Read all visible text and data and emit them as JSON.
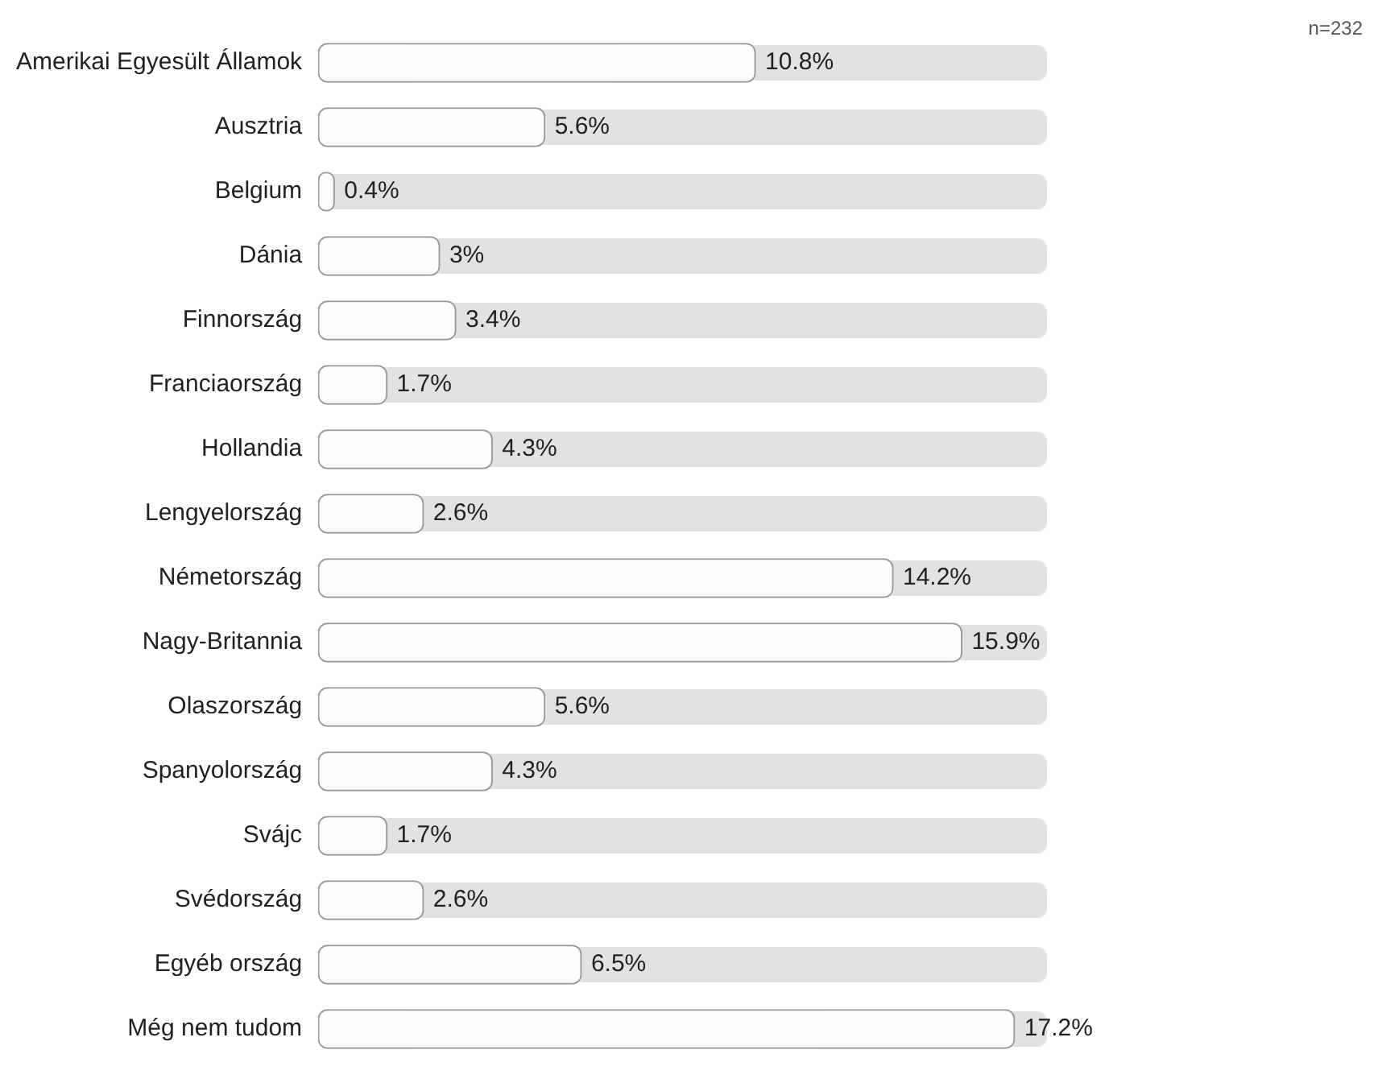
{
  "chart_data": {
    "type": "bar",
    "orientation": "horizontal",
    "categories": [
      "Amerikai Egyesült Államok",
      "Ausztria",
      "Belgium",
      "Dánia",
      "Finnország",
      "Franciaország",
      "Hollandia",
      "Lengyelország",
      "Németország",
      "Nagy-Britannia",
      "Olaszország",
      "Spanyolország",
      "Svájc",
      "Svédország",
      "Egyéb ország",
      "Még nem tudom"
    ],
    "values": [
      10.8,
      5.6,
      0.4,
      3,
      3.4,
      1.7,
      4.3,
      2.6,
      14.2,
      15.9,
      5.6,
      4.3,
      1.7,
      2.6,
      6.5,
      17.2
    ],
    "value_labels": [
      "10.8%",
      "5.6%",
      "0.4%",
      "3%",
      "3.4%",
      "1.7%",
      "4.3%",
      "2.6%",
      "14.2%",
      "15.9%",
      "5.6%",
      "4.3%",
      "1.7%",
      "2.6%",
      "6.5%",
      "17.2%"
    ],
    "color": "#fdfdfd",
    "tick_labels": "y",
    "grid": false,
    "legend": false,
    "annotations": [
      "n=232"
    ]
  }
}
